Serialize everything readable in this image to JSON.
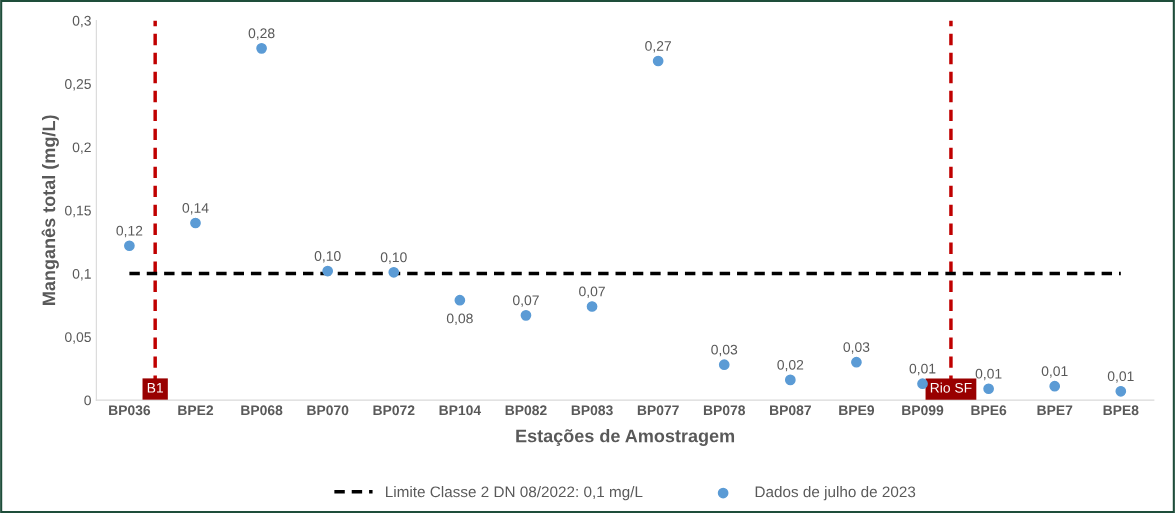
{
  "chart_data": {
    "type": "scatter",
    "xlabel": "Estações de Amostragem",
    "ylabel": "Manganês total (mg/L)",
    "categories": [
      "BP036",
      "BPE2",
      "BP068",
      "BP070",
      "BP072",
      "BP104",
      "BP082",
      "BP083",
      "BP077",
      "BP078",
      "BP087",
      "BPE9",
      "BP099",
      "BPE6",
      "BPE7",
      "BPE8"
    ],
    "series": [
      {
        "type": "line",
        "name": "Limite Classe 2 DN 08/2022: 0,1 mg/L",
        "color": "#000000",
        "line_style": "dashed",
        "marker": "none",
        "values": [
          0.1,
          0.1,
          0.1,
          0.1,
          0.1,
          0.1,
          0.1,
          0.1,
          0.1,
          0.1,
          0.1,
          0.1,
          0.1,
          0.1,
          0.1,
          0.1
        ]
      },
      {
        "name": "Dados de julho de 2023",
        "color": "#5b9bd5",
        "marker": "circle",
        "values": [
          0.122,
          0.14,
          0.278,
          0.102,
          0.101,
          0.079,
          0.067,
          0.074,
          0.268,
          0.028,
          0.016,
          0.03,
          0.013,
          0.009,
          0.011,
          0.007
        ],
        "value_labels": [
          "0,12",
          "0,14",
          "0,28",
          "0,10",
          "0,10",
          "0,08",
          "0,07",
          "0,07",
          "0,27",
          "0,03",
          "0,02",
          "0,03",
          "0,01",
          "0,01",
          "0,01",
          "0,01"
        ]
      }
    ],
    "annotations": [
      "B1",
      "Rio SF"
    ],
    "ylim": [
      0,
      0.3
    ],
    "yticks": [
      {
        "value": 0,
        "label": "0"
      },
      {
        "value": 0.05,
        "label": "0,05"
      },
      {
        "value": 0.1,
        "label": "0,1"
      },
      {
        "value": 0.15,
        "label": "0,15"
      },
      {
        "value": 0.2,
        "label": "0,2"
      },
      {
        "value": 0.25,
        "label": "0,25"
      },
      {
        "value": 0.3,
        "label": "0,3"
      }
    ],
    "grid": false,
    "legend": "bottom"
  }
}
